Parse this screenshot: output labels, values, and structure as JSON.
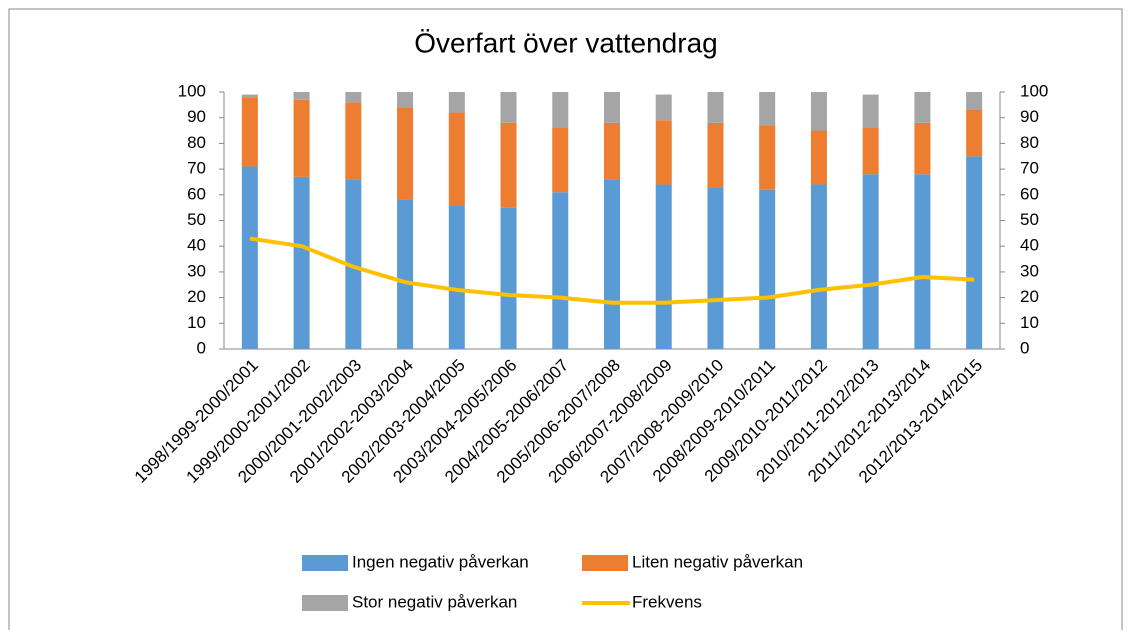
{
  "chart_data": {
    "type": "bar",
    "title": "Överfart över vattendrag",
    "categories": [
      "1998/1999-2000/2001",
      "1999/2000-2001/2002",
      "2000/2001-2002/2003",
      "2001/2002-2003/2004",
      "2002/2003-2004/2005",
      "2003/2004-2005/2006",
      "2004/2005-2006/2007",
      "2005/2006-2007/2008",
      "2006/2007-2008/2009",
      "2007/2008-2009/2010",
      "2008/2009-2010/2011",
      "2009/2010-2011/2012",
      "2010/2011-2012/2013",
      "2011/2012-2013/2014",
      "2012/2013-2014/2015"
    ],
    "series": [
      {
        "name": "Ingen negativ påverkan",
        "color": "#5b9bd5",
        "values": [
          71,
          67,
          66,
          58,
          56,
          55,
          61,
          66,
          64,
          63,
          62,
          64,
          68,
          68,
          75
        ]
      },
      {
        "name": "Liten negativ påverkan",
        "color": "#ed7d31",
        "values": [
          27,
          30,
          30,
          36,
          36,
          33,
          25,
          22,
          25,
          25,
          25,
          21,
          18,
          20,
          18
        ]
      },
      {
        "name": "Stor negativ påverkan",
        "color": "#a5a5a5",
        "values": [
          1,
          3,
          4,
          6,
          8,
          12,
          14,
          12,
          10,
          12,
          13,
          15,
          13,
          12,
          7
        ]
      },
      {
        "name": "Frekvens",
        "color": "#ffc000",
        "type": "line",
        "axis": "y2",
        "values": [
          43,
          40,
          32,
          26,
          23,
          21,
          20,
          18,
          18,
          19,
          20,
          23,
          25,
          28,
          27
        ]
      }
    ],
    "stacked": true,
    "ylim": [
      0,
      100
    ],
    "yticks": [
      0,
      10,
      20,
      30,
      40,
      50,
      60,
      70,
      80,
      90,
      100
    ],
    "y2lim": [
      0,
      100
    ],
    "y2ticks": [
      0,
      10,
      20,
      30,
      40,
      50,
      60,
      70,
      80,
      90,
      100
    ],
    "legend": "bottom"
  }
}
